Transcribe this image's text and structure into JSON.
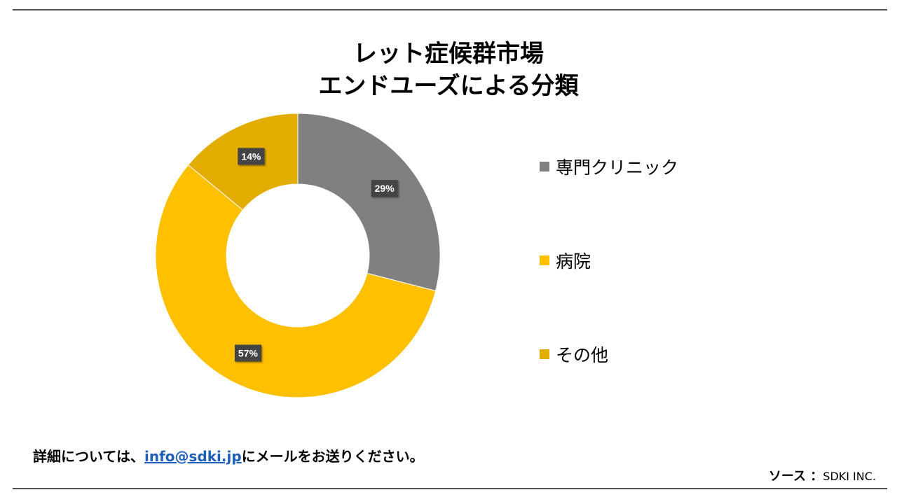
{
  "title": {
    "line1": "レット症候群市場",
    "line2": "エンドユーズによる分類"
  },
  "chart_data": {
    "type": "pie",
    "style": "donut",
    "title": "レット症候群市場 エンドユーズによる分類",
    "categories": [
      "専門クリニック",
      "病院",
      "その他"
    ],
    "values": [
      29,
      57,
      14
    ],
    "labels": [
      "29%",
      "57%",
      "14%"
    ],
    "colors": [
      "#808080",
      "#FFC000",
      "#E3AC00"
    ],
    "legend": "right"
  },
  "footer": {
    "prefix": "詳細については、",
    "email": "info@sdki.jp",
    "suffix": "にメールをお送りください。"
  },
  "source": {
    "label": "ソース ：",
    "value": "SDKI INC."
  }
}
